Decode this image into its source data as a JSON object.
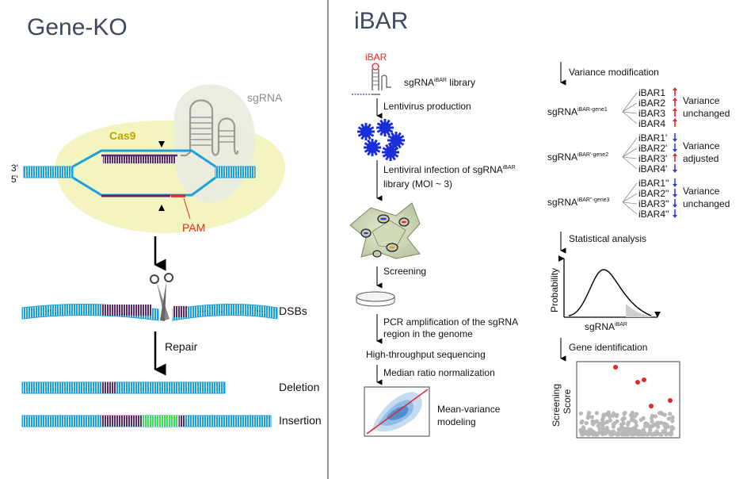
{
  "left": {
    "title": "Gene-KO",
    "labels": {
      "sgrna": "sgRNA",
      "cas9": "Cas9",
      "end3": "3'",
      "end5": "5'",
      "pam": "PAM",
      "dsbs": "DSBs",
      "repair": "Repair",
      "deletion": "Deletion",
      "insertion": "Insertion"
    }
  },
  "right": {
    "title": "iBAR",
    "workflow": {
      "ibar_tag": "iBAR",
      "library_pre": "sgRNA",
      "library_sup": "iBAR",
      "library_post": " library",
      "lentivirus": "Lentivirus production",
      "infection_pre": "Lentiviral infection of sgRNA",
      "infection_sup": "iBAR",
      "infection_line2": "library (MOI ~ 3)",
      "screening": "Screening",
      "pcr_line1": "PCR amplification of the sgRNA",
      "pcr_line2": "region in the genome",
      "sequencing": "High-throughput sequencing",
      "normalization": "Median ratio normalization",
      "mv_line1": "Mean-variance",
      "mv_line2": "modeling"
    },
    "analysis": {
      "variance_mod": "Variance modification",
      "groups": [
        {
          "sg": "sgRNA",
          "sup": "iBAR-gene1",
          "bars": [
            "iBAR1",
            "iBAR2",
            "iBAR3",
            "iBAR4"
          ],
          "dirs": [
            "up",
            "up",
            "up",
            "up"
          ],
          "note1": "Variance",
          "note2": "unchanged"
        },
        {
          "sg": "sgRNA",
          "sup": "iBAR'-gene2",
          "bars": [
            "iBAR1'",
            "iBAR2'",
            "iBAR3'",
            "iBAR4'"
          ],
          "dirs": [
            "down",
            "down",
            "up",
            "down"
          ],
          "note1": "Variance",
          "note2": "adjusted"
        },
        {
          "sg": "sgRNA",
          "sup": "iBAR''-gene3",
          "bars": [
            "iBAR1''",
            "iBAR2''",
            "iBAR3''",
            "iBAR4''"
          ],
          "dirs": [
            "down",
            "down",
            "down",
            "down"
          ],
          "note1": "Variance",
          "note2": "unchanged"
        }
      ],
      "stat": "Statistical analysis",
      "prob_axis": "Probability",
      "sg_axis_pre": "sgRNA",
      "sg_axis_sup": "iBAR",
      "gene_id": "Gene identification",
      "score_axis1": "Screening",
      "score_axis2": "Score"
    },
    "colors": {
      "up": "#e3262b",
      "down": "#2a3fd6"
    }
  }
}
